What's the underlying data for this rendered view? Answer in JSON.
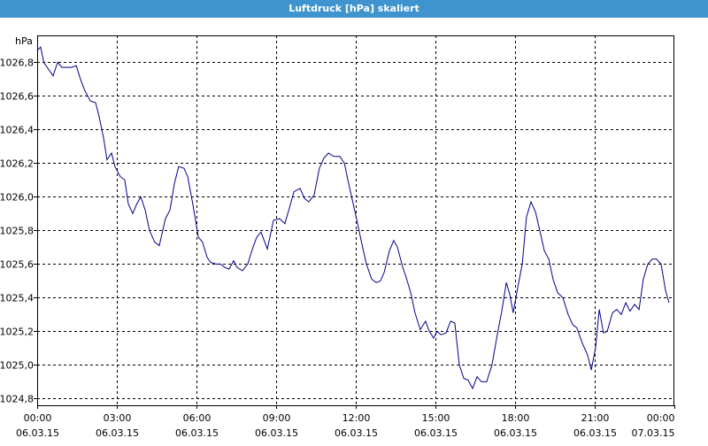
{
  "title": "Luftdruck [hPa] skaliert",
  "chart_data": {
    "type": "line",
    "title": "Luftdruck [hPa] skaliert",
    "ylabel": "hPa",
    "xlabel": "",
    "xlim": [
      0,
      24
    ],
    "ylim": [
      1024.76,
      1026.96
    ],
    "grid": true,
    "grid_style": "dashed",
    "line_color": "#00008b",
    "y_ticks": [
      {
        "value": 1024.8,
        "label": "1024,8"
      },
      {
        "value": 1025.0,
        "label": "1025,0"
      },
      {
        "value": 1025.2,
        "label": "1025,2"
      },
      {
        "value": 1025.4,
        "label": "1025,4"
      },
      {
        "value": 1025.6,
        "label": "1025,6"
      },
      {
        "value": 1025.8,
        "label": "1025,8"
      },
      {
        "value": 1026.0,
        "label": "1026,0"
      },
      {
        "value": 1026.2,
        "label": "1026,2"
      },
      {
        "value": 1026.4,
        "label": "1026,4"
      },
      {
        "value": 1026.6,
        "label": "1026,6"
      },
      {
        "value": 1026.8,
        "label": "1026,8"
      }
    ],
    "x_ticks": [
      {
        "value": 0,
        "time": "00:00",
        "date": "06.03.15"
      },
      {
        "value": 3,
        "time": "03:00",
        "date": "06.03.15"
      },
      {
        "value": 6,
        "time": "06:00",
        "date": "06.03.15"
      },
      {
        "value": 9,
        "time": "09:00",
        "date": "06.03.15"
      },
      {
        "value": 12,
        "time": "12:00",
        "date": "06.03.15"
      },
      {
        "value": 15,
        "time": "15:00",
        "date": "06.03.15"
      },
      {
        "value": 18,
        "time": "18:00",
        "date": "06.03.15"
      },
      {
        "value": 21,
        "time": "21:00",
        "date": "06.03.15"
      },
      {
        "value": 24,
        "time": "00:00",
        "date": "07.03.15"
      }
    ],
    "series": [
      {
        "x": [
          0,
          0.13,
          0.25,
          0.42,
          0.6,
          0.77,
          0.93,
          1.08,
          1.3,
          1.47,
          1.63,
          1.8,
          2.0,
          2.2,
          2.33,
          2.5,
          2.63,
          2.8,
          2.93,
          3.13,
          3.3,
          3.43,
          3.6,
          3.73,
          3.9,
          4.07,
          4.23,
          4.43,
          4.6,
          4.83,
          5.0,
          5.17,
          5.33,
          5.53,
          5.67,
          5.87,
          6.07,
          6.23,
          6.4,
          6.53,
          6.73,
          6.9,
          7.07,
          7.23,
          7.4,
          7.53,
          7.73,
          7.93,
          8.13,
          8.27,
          8.43,
          8.67,
          8.9,
          9.13,
          9.33,
          9.53,
          9.67,
          9.9,
          10.07,
          10.23,
          10.43,
          10.63,
          10.8,
          10.97,
          11.17,
          11.4,
          11.57,
          11.73,
          11.9,
          12.07,
          12.23,
          12.4,
          12.6,
          12.77,
          12.93,
          13.07,
          13.27,
          13.43,
          13.57,
          13.77,
          13.9,
          14.07,
          14.23,
          14.43,
          14.63,
          14.77,
          14.93,
          15.07,
          15.2,
          15.4,
          15.57,
          15.73,
          15.9,
          16.07,
          16.23,
          16.4,
          16.57,
          16.73,
          16.93,
          17.13,
          17.33,
          17.5,
          17.67,
          17.8,
          17.93,
          18.1,
          18.27,
          18.43,
          18.6,
          18.77,
          18.93,
          19.1,
          19.27,
          19.43,
          19.6,
          19.8,
          20.0,
          20.17,
          20.33,
          20.53,
          20.73,
          20.87,
          21.03,
          21.17,
          21.33,
          21.47,
          21.67,
          21.83,
          22.0,
          22.17,
          22.33,
          22.5,
          22.67,
          22.83,
          23.0,
          23.17,
          23.33,
          23.5,
          23.67,
          23.8
        ],
        "y": [
          1026.87,
          1026.89,
          1026.8,
          1026.76,
          1026.72,
          1026.8,
          1026.77,
          1026.77,
          1026.77,
          1026.78,
          1026.7,
          1026.63,
          1026.57,
          1026.56,
          1026.48,
          1026.35,
          1026.22,
          1026.26,
          1026.18,
          1026.12,
          1026.1,
          1025.96,
          1025.9,
          1025.95,
          1026.0,
          1025.92,
          1025.8,
          1025.73,
          1025.71,
          1025.87,
          1025.92,
          1026.08,
          1026.18,
          1026.17,
          1026.12,
          1025.95,
          1025.76,
          1025.73,
          1025.64,
          1025.61,
          1025.6,
          1025.6,
          1025.58,
          1025.57,
          1025.62,
          1025.58,
          1025.56,
          1025.6,
          1025.7,
          1025.76,
          1025.79,
          1025.69,
          1025.86,
          1025.87,
          1025.84,
          1025.95,
          1026.03,
          1026.05,
          1025.99,
          1025.97,
          1026.01,
          1026.17,
          1026.23,
          1026.26,
          1026.24,
          1026.24,
          1026.2,
          1026.08,
          1025.96,
          1025.84,
          1025.72,
          1025.6,
          1025.51,
          1025.49,
          1025.5,
          1025.55,
          1025.68,
          1025.74,
          1025.7,
          1025.58,
          1025.52,
          1025.43,
          1025.31,
          1025.21,
          1025.26,
          1025.2,
          1025.16,
          1025.2,
          1025.18,
          1025.19,
          1025.26,
          1025.25,
          1025.0,
          1024.92,
          1024.91,
          1024.86,
          1024.93,
          1024.9,
          1024.9,
          1025.0,
          1025.18,
          1025.32,
          1025.49,
          1025.42,
          1025.31,
          1025.46,
          1025.6,
          1025.88,
          1025.97,
          1025.91,
          1025.8,
          1025.68,
          1025.63,
          1025.51,
          1025.43,
          1025.4,
          1025.3,
          1025.24,
          1025.22,
          1025.13,
          1025.06,
          1024.97,
          1025.1,
          1025.33,
          1025.19,
          1025.2,
          1025.31,
          1025.33,
          1025.3,
          1025.37,
          1025.32,
          1025.36,
          1025.33,
          1025.51,
          1025.6,
          1025.63,
          1025.63,
          1025.6,
          1025.44,
          1025.37
        ]
      }
    ]
  }
}
